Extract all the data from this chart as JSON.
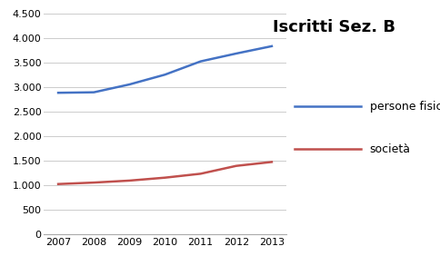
{
  "years": [
    2007,
    2008,
    2009,
    2010,
    2011,
    2012,
    2013
  ],
  "persone_fisiche": [
    2880,
    2890,
    3050,
    3250,
    3520,
    3680,
    3830
  ],
  "societa": [
    1020,
    1050,
    1090,
    1150,
    1230,
    1390,
    1470
  ],
  "line_color_pf": "#4472C4",
  "line_color_soc": "#C0504D",
  "title": "Iscritti Sez. B",
  "legend_pf": "persone fisiche",
  "legend_soc": "società",
  "ylim": [
    0,
    4500
  ],
  "yticks": [
    0,
    500,
    1000,
    1500,
    2000,
    2500,
    3000,
    3500,
    4000,
    4500
  ],
  "ytick_labels": [
    "0",
    "500",
    "1.000",
    "1.500",
    "2.000",
    "2.500",
    "3.000",
    "3.500",
    "4.000",
    "4.500"
  ],
  "bg_color": "#FFFFFF",
  "grid_color": "#CCCCCC",
  "line_width": 1.8,
  "title_fontsize": 13,
  "legend_fontsize": 9,
  "tick_fontsize": 8
}
